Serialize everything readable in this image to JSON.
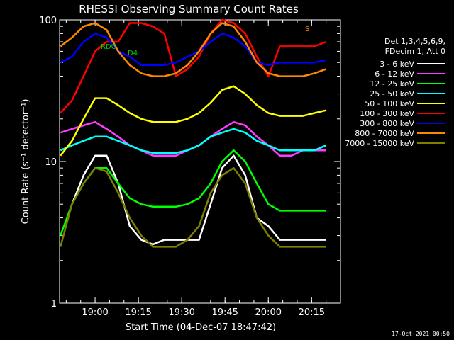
{
  "chart_data": {
    "type": "line",
    "title": "RHESSI Observing Summary Count Rates",
    "xlabel": "Start Time (04-Dec-07 18:47:42)",
    "ylabel": "Count Rate (s⁻¹ detector⁻¹)",
    "y_scale": "log",
    "ylim": [
      1,
      100
    ],
    "xlim": [
      "18:47:42",
      "20:25:00"
    ],
    "x_ticks": [
      "19:00",
      "19:15",
      "19:30",
      "19:45",
      "20:00",
      "20:15"
    ],
    "y_ticks": [
      "1",
      "10",
      "100"
    ],
    "grid": false,
    "legend_position": "right",
    "legend_header": [
      "Det 1,3,4,5,6,9,",
      "FDecim 1, Att 0"
    ],
    "flag_labels": [
      "RDO",
      "D4",
      "S"
    ],
    "x": [
      "18:48",
      "18:52",
      "18:56",
      "19:00",
      "19:04",
      "19:08",
      "19:12",
      "19:16",
      "19:20",
      "19:24",
      "19:28",
      "19:32",
      "19:36",
      "19:40",
      "19:44",
      "19:48",
      "19:52",
      "19:56",
      "20:00",
      "20:04",
      "20:08",
      "20:12",
      "20:16",
      "20:20"
    ],
    "series": [
      {
        "name": "3 - 6 keV",
        "color": "#ffffff",
        "values": [
          null,
          5,
          8,
          11,
          11,
          7,
          3.5,
          2.8,
          2.6,
          2.8,
          2.8,
          2.8,
          2.8,
          5,
          9,
          11,
          8,
          4,
          3.5,
          2.8,
          2.8,
          2.8,
          2.8,
          2.8
        ]
      },
      {
        "name": "6 - 12 keV",
        "color": "#ff3bff",
        "values": [
          16,
          17,
          18,
          19,
          17,
          15,
          13,
          12,
          11,
          11,
          11,
          12,
          13,
          15,
          17,
          19,
          18,
          15,
          13,
          11,
          11,
          12,
          12,
          12
        ]
      },
      {
        "name": "12 - 25 keV",
        "color": "#00ff00",
        "values": [
          3,
          5,
          7,
          9,
          9,
          7,
          5.5,
          5,
          4.8,
          4.8,
          4.8,
          5,
          5.5,
          7,
          10,
          12,
          10,
          7,
          5,
          4.5,
          4.5,
          4.5,
          4.5,
          4.5
        ]
      },
      {
        "name": "25 - 50 keV",
        "color": "#00ffff",
        "values": [
          12,
          13,
          14,
          15,
          15,
          14,
          13,
          12,
          11.5,
          11.5,
          11.5,
          12,
          13,
          15,
          16,
          17,
          16,
          14,
          13,
          12,
          12,
          12,
          12,
          13
        ]
      },
      {
        "name": "50 - 100 keV",
        "color": "#ffff00",
        "values": [
          11,
          14,
          20,
          28,
          28,
          25,
          22,
          20,
          19,
          19,
          19,
          20,
          22,
          26,
          32,
          34,
          30,
          25,
          22,
          21,
          21,
          21,
          22,
          23
        ]
      },
      {
        "name": "100 - 300 keV",
        "color": "#ff0000",
        "values": [
          22,
          27,
          40,
          60,
          70,
          70,
          95,
          95,
          90,
          80,
          40,
          45,
          55,
          80,
          100,
          95,
          80,
          55,
          40,
          65,
          65,
          65,
          65,
          70
        ]
      },
      {
        "name": "300 - 800 keV",
        "color": "#0000ff",
        "values": [
          50,
          55,
          70,
          80,
          75,
          60,
          55,
          48,
          48,
          48,
          50,
          55,
          60,
          70,
          80,
          75,
          65,
          50,
          48,
          50,
          50,
          50,
          50,
          52
        ]
      },
      {
        "name": "800 - 7000 keV",
        "color": "#ff8800",
        "values": [
          65,
          75,
          90,
          95,
          85,
          60,
          48,
          42,
          40,
          40,
          42,
          48,
          60,
          80,
          95,
          90,
          70,
          50,
          42,
          40,
          40,
          40,
          42,
          45
        ]
      },
      {
        "name": "7000 - 15000 keV",
        "color": "#808000",
        "values": [
          2.5,
          5,
          7,
          9,
          8.5,
          6,
          4,
          3,
          2.5,
          2.5,
          2.5,
          2.8,
          3.5,
          6,
          8,
          9,
          7,
          4,
          3,
          2.5,
          2.5,
          2.5,
          2.5,
          2.5
        ]
      }
    ]
  },
  "footer": {
    "timestamp": "17-Oct-2021 00:50"
  }
}
